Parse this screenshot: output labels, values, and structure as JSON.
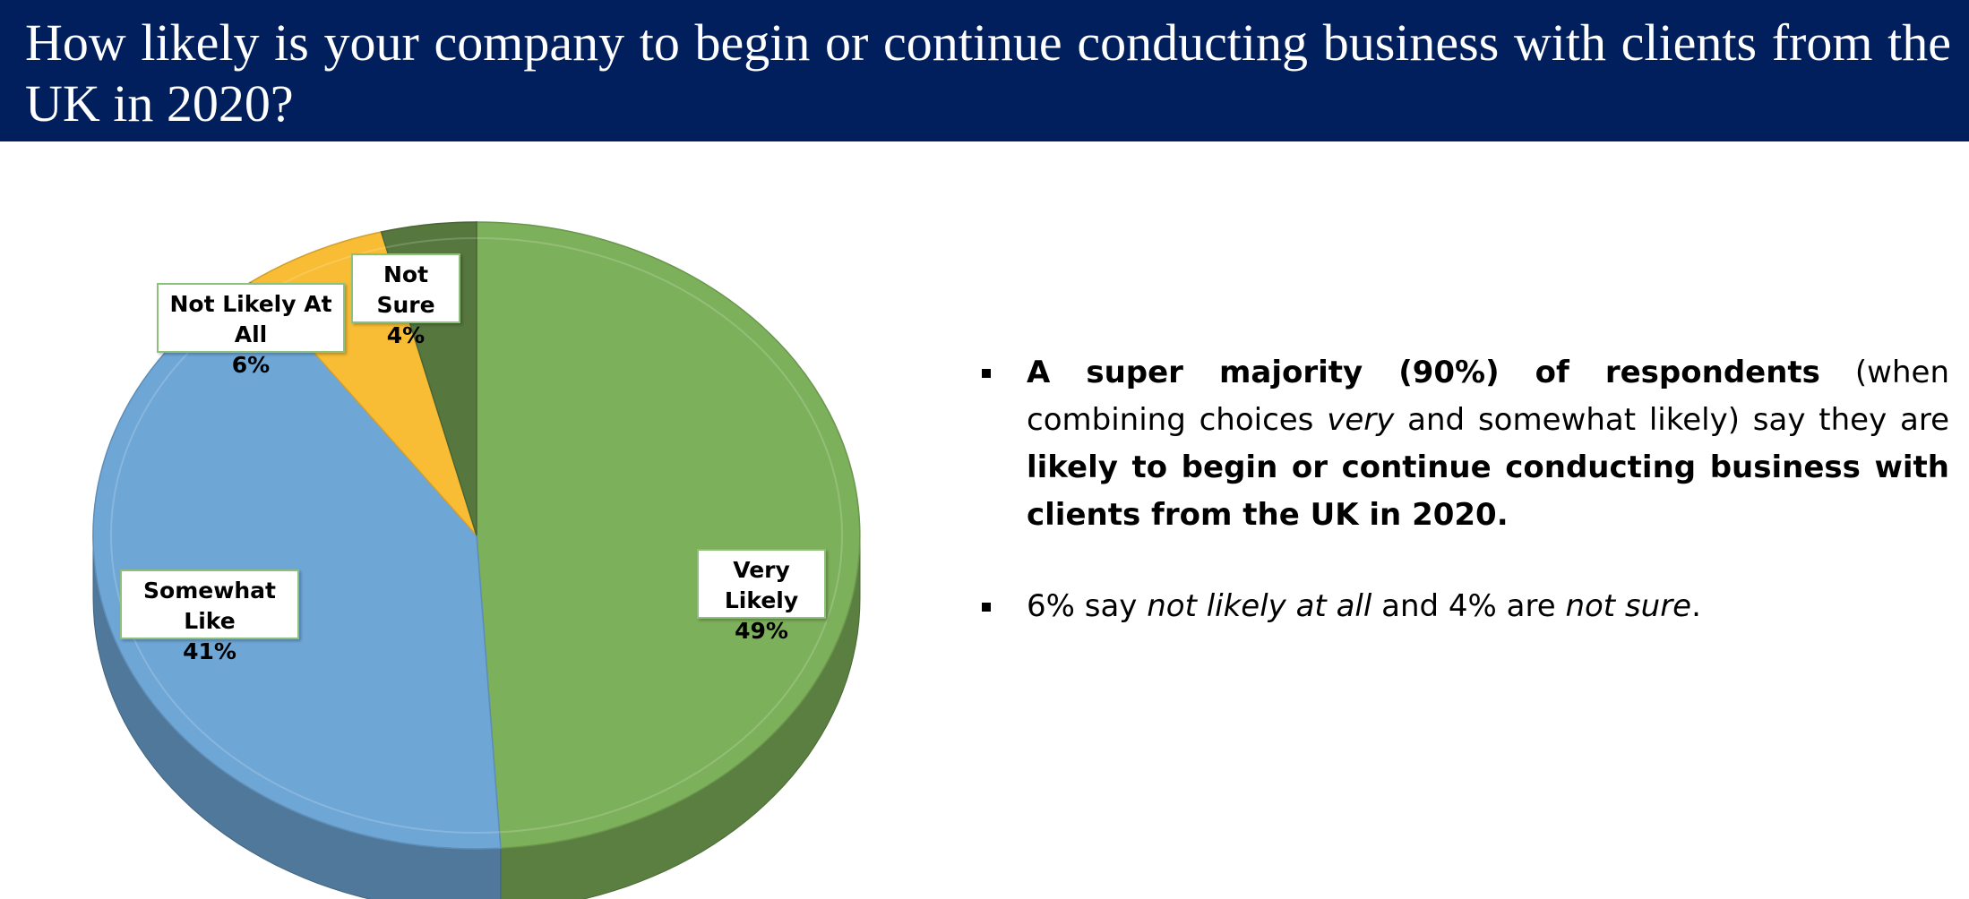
{
  "header": {
    "title": "How likely is your company to begin or continue conducting business with clients from the UK in 2020?"
  },
  "colors": {
    "header_bg": "#001f5c",
    "very_likely": "#7db05a",
    "somewhat_like": "#6ea6d6",
    "not_likely_at_all": "#f8bc35",
    "not_sure": "#56773e"
  },
  "chart_data": {
    "type": "pie",
    "title": "",
    "slices": [
      {
        "name": "Very Likely",
        "value": 49,
        "label": "49%",
        "color": "#7db05a"
      },
      {
        "name": "Somewhat Like",
        "value": 41,
        "label": "41%",
        "color": "#6ea6d6"
      },
      {
        "name": "Not Likely At All",
        "value": 6,
        "label": "6%",
        "color": "#f8bc35"
      },
      {
        "name": "Not Sure",
        "value": 4,
        "label": "4%",
        "color": "#56773e"
      }
    ],
    "style": "3d"
  },
  "bullets": [
    {
      "parts": [
        {
          "text": "A super majority (90%) of respondents",
          "style": "bold"
        },
        {
          "text": " (when combining choices ",
          "style": "normal"
        },
        {
          "text": "very",
          "style": "italic"
        },
        {
          "text": " and somewhat likely) say they are ",
          "style": "normal"
        },
        {
          "text": "likely to begin or continue conducting business with clients from the UK in 2020.",
          "style": "bold"
        }
      ]
    },
    {
      "parts": [
        {
          "text": "6% say ",
          "style": "normal"
        },
        {
          "text": "not likely at all",
          "style": "italic"
        },
        {
          "text": " and 4% are ",
          "style": "normal"
        },
        {
          "text": "not sure",
          "style": "italic"
        },
        {
          "text": ".",
          "style": "normal"
        }
      ]
    }
  ]
}
